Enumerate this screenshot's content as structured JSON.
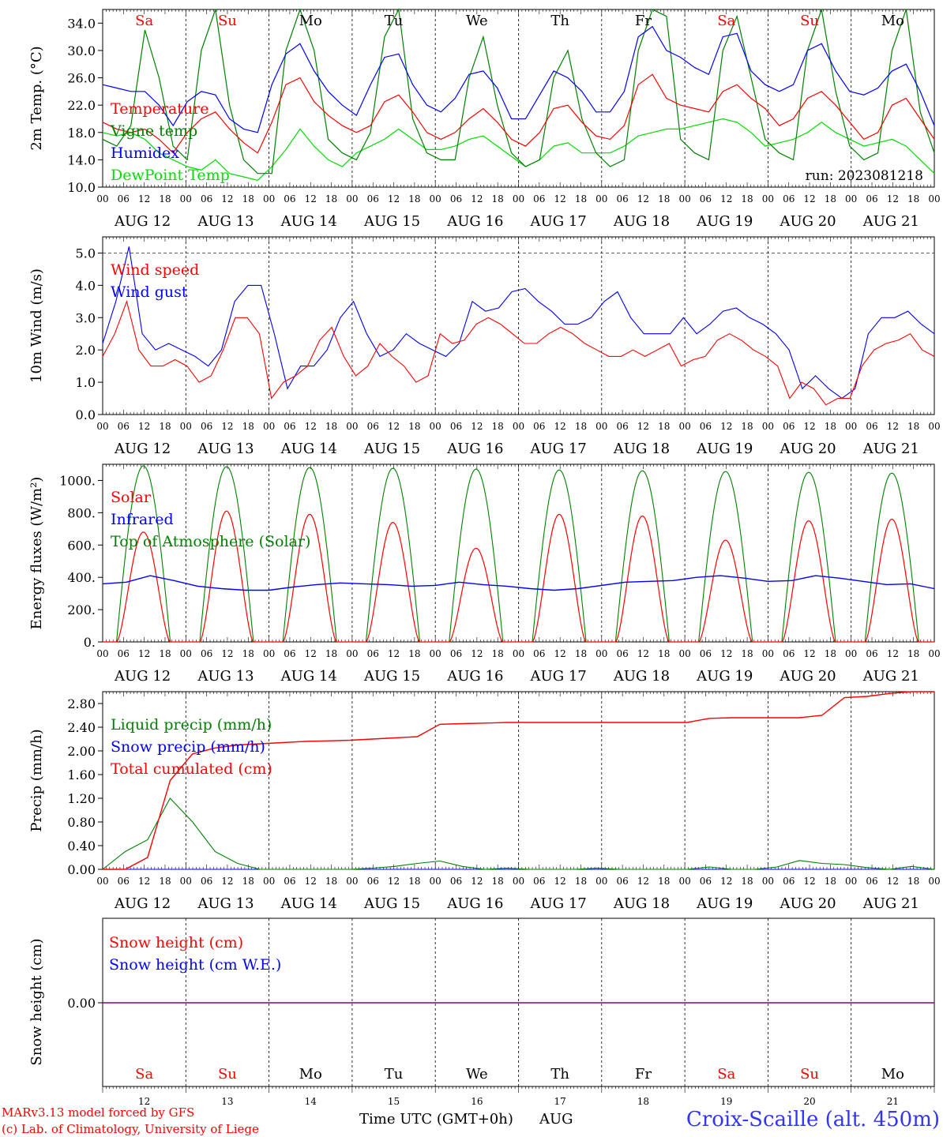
{
  "days": [
    "AUG 12",
    "AUG 13",
    "AUG 14",
    "AUG 15",
    "AUG 16",
    "AUG 17",
    "AUG 18",
    "AUG 19",
    "AUG 20",
    "AUG 21"
  ],
  "weekdays": [
    {
      "label": "Sa",
      "color": "#ff0000"
    },
    {
      "label": "Su",
      "color": "#ff0000"
    },
    {
      "label": "Mo",
      "color": "#000000"
    },
    {
      "label": "Tu",
      "color": "#000000"
    },
    {
      "label": "We",
      "color": "#000000"
    },
    {
      "label": "Th",
      "color": "#000000"
    },
    {
      "label": "Fr",
      "color": "#000000"
    },
    {
      "label": "Sa",
      "color": "#ff0000"
    },
    {
      "label": "Su",
      "color": "#ff0000"
    },
    {
      "label": "Mo",
      "color": "#000000"
    }
  ],
  "hour_ticks": [
    "00",
    "06",
    "12",
    "18"
  ],
  "day_numbers": [
    "12",
    "13",
    "14",
    "15",
    "16",
    "17",
    "18",
    "19",
    "20",
    "21"
  ],
  "colors": {
    "red": "#ff0000",
    "blue": "#0000ff",
    "green": "#008000",
    "lightgreen": "#00dd00",
    "purple": "#800080"
  },
  "footer": {
    "model_line": "MARv3.13 model forced by GFS",
    "credit_line": "(c) Lab. of Climatology, University of Liege",
    "time_label": "Time UTC (GMT+0h)",
    "month_label": "AUG",
    "station": "Croix-Scaille (alt. 450m)"
  },
  "chart_data": [
    {
      "type": "line",
      "ylabel": "2m Temp. (°C)",
      "ylim": [
        10,
        36
      ],
      "yticks": [
        "10.0",
        "14.0",
        "18.0",
        "22.0",
        "26.0",
        "30.0",
        "34.0"
      ],
      "annotation": "run: 2023081218",
      "legend": [
        {
          "name": "Temperature",
          "color": "#ff0000"
        },
        {
          "name": "Vigne temp",
          "color": "#008000"
        },
        {
          "name": "Humidex",
          "color": "#0000ff"
        },
        {
          "name": "DewPoint Temp",
          "color": "#00dd00"
        }
      ],
      "series": [
        {
          "name": "Temperature",
          "color": "#ff0000",
          "values": [
            19.5,
            18.5,
            18,
            18.5,
            17,
            15,
            18,
            20,
            21,
            18.5,
            16.5,
            15,
            19.5,
            25,
            26,
            22.5,
            20.5,
            19,
            18,
            19,
            22.5,
            23.5,
            21,
            18,
            17,
            18,
            20,
            21.5,
            19.5,
            17,
            16,
            18,
            21.5,
            22,
            19.5,
            17.5,
            17,
            19,
            25,
            26.5,
            23,
            22,
            21.5,
            21,
            24,
            25,
            23,
            21.5,
            19,
            20,
            23,
            24,
            22,
            19.5,
            17,
            18,
            22,
            23,
            20,
            17
          ]
        },
        {
          "name": "Vigne temp",
          "color": "#008000",
          "values": [
            17,
            16,
            19,
            33,
            26,
            16,
            14,
            30,
            37,
            22,
            14,
            12,
            12,
            30,
            36,
            30,
            17,
            15,
            14,
            18,
            32,
            36,
            20,
            15,
            14,
            14,
            26,
            32,
            22,
            15,
            13,
            14,
            26,
            30,
            20,
            15,
            13,
            14,
            30,
            37,
            35,
            17,
            15,
            14,
            30,
            35,
            26,
            17,
            15,
            14,
            30,
            36,
            24,
            16,
            14,
            15,
            30,
            36,
            21,
            15
          ]
        },
        {
          "name": "Humidex",
          "color": "#0000ff",
          "values": [
            25,
            24.5,
            24,
            24,
            22,
            19,
            22.5,
            24,
            23.5,
            20,
            18.5,
            18,
            25,
            29.5,
            31,
            27,
            24,
            22,
            20.5,
            25,
            29,
            29.5,
            25,
            22,
            21,
            23,
            26.5,
            27,
            24.5,
            20,
            20,
            23.5,
            27,
            26,
            24,
            21,
            21,
            24,
            32,
            33.5,
            30,
            29,
            27.5,
            26.5,
            32,
            32.5,
            27,
            25,
            24,
            25,
            30,
            31,
            27,
            24,
            23.5,
            24.5,
            27,
            28,
            24,
            19
          ]
        },
        {
          "name": "DewPoint Temp",
          "color": "#00dd00",
          "values": [
            18,
            17.5,
            18,
            17,
            15,
            14,
            13,
            12.5,
            14,
            12,
            11.5,
            11,
            13,
            15.5,
            18.5,
            16,
            14,
            13,
            15,
            16,
            17,
            18.5,
            17,
            15.5,
            15.5,
            16,
            17,
            17.5,
            16,
            14.5,
            13,
            14,
            16,
            16.5,
            15,
            15,
            15,
            16,
            17.5,
            18,
            18.5,
            18.5,
            19,
            19.5,
            20,
            19.5,
            18,
            16,
            16.5,
            17,
            18,
            19.5,
            18,
            17,
            16,
            16.5,
            17,
            16,
            14,
            12
          ]
        }
      ]
    },
    {
      "type": "line",
      "ylabel": "10m Wind (m/s)",
      "ylim": [
        0,
        5.5
      ],
      "yticks": [
        "0.0",
        "1.0",
        "2.0",
        "3.0",
        "4.0",
        "5.0"
      ],
      "legend": [
        {
          "name": "Wind speed",
          "color": "#ff0000"
        },
        {
          "name": "Wind gust",
          "color": "#0000ff"
        }
      ],
      "series": [
        {
          "name": "Wind speed",
          "color": "#ff0000",
          "values": [
            1.8,
            2.5,
            3.5,
            2,
            1.5,
            1.5,
            1.7,
            1.5,
            1,
            1.2,
            2,
            3,
            3,
            2.5,
            0.5,
            1,
            1.2,
            1.5,
            2.3,
            2.7,
            1.8,
            1.2,
            1.5,
            2.2,
            1.8,
            1.5,
            1,
            1.2,
            2.5,
            2.2,
            2.3,
            2.8,
            3,
            2.8,
            2.5,
            2.2,
            2.2,
            2.5,
            2.7,
            2.5,
            2.2,
            2,
            1.8,
            1.8,
            2,
            1.8,
            2,
            2.2,
            1.5,
            1.7,
            1.8,
            2.3,
            2.5,
            2.3,
            2,
            1.8,
            1.5,
            0.5,
            1,
            0.8,
            0.3,
            0.5,
            0.5,
            1.5,
            2,
            2.2,
            2.3,
            2.5,
            2,
            1.8
          ]
        },
        {
          "name": "Wind gust",
          "color": "#0000ff",
          "values": [
            2.2,
            3.5,
            5.2,
            2.5,
            2,
            2.2,
            2,
            1.8,
            1.5,
            2,
            3.5,
            4,
            4,
            2.5,
            0.8,
            1.5,
            1.5,
            2,
            3,
            3.5,
            2.5,
            1.8,
            2,
            2.5,
            2.2,
            2,
            1.8,
            2.2,
            3.5,
            3.2,
            3.3,
            3.8,
            3.9,
            3.5,
            3.2,
            2.8,
            2.8,
            3,
            3.5,
            3.8,
            3,
            2.5,
            2.5,
            2.5,
            3,
            2.5,
            2.8,
            3.2,
            3.3,
            3,
            2.8,
            2.5,
            2,
            0.8,
            1.2,
            0.8,
            0.5,
            0.8,
            2.5,
            3,
            3,
            3.2,
            2.8,
            2.5
          ]
        }
      ]
    },
    {
      "type": "line",
      "ylabel": "Energy fluxes (W/m²)",
      "ylim": [
        0,
        1100
      ],
      "yticks": [
        "0.",
        "200.",
        "400.",
        "600.",
        "800.",
        "1000."
      ],
      "legend": [
        {
          "name": "Solar",
          "color": "#ff0000"
        },
        {
          "name": "Infrared",
          "color": "#0000ff"
        },
        {
          "name": "Top of Atmosphere (Solar)",
          "color": "#008000"
        }
      ],
      "toa_daily_peak": [
        1090,
        1085,
        1080,
        1075,
        1070,
        1065,
        1060,
        1055,
        1050,
        1045
      ],
      "solar_daily_peak": [
        680,
        810,
        790,
        740,
        580,
        790,
        780,
        630,
        750,
        760
      ],
      "infrared_values": [
        360,
        370,
        410,
        380,
        345,
        330,
        320,
        320,
        340,
        355,
        365,
        360,
        355,
        345,
        350,
        370,
        355,
        345,
        330,
        320,
        330,
        350,
        370,
        375,
        380,
        400,
        410,
        395,
        375,
        380,
        410,
        395,
        375,
        355,
        360,
        330
      ]
    },
    {
      "type": "line",
      "ylabel": "Precip (mm/h)",
      "ylim": [
        0,
        3
      ],
      "yticks": [
        "0.00",
        "0.40",
        "0.80",
        "1.20",
        "1.60",
        "2.00",
        "2.40",
        "2.80"
      ],
      "legend": [
        {
          "name": "Liquid precip (mm/h)",
          "color": "#008000"
        },
        {
          "name": "Snow precip (mm/h)",
          "color": "#0000ff"
        },
        {
          "name": "Total cumulated (cm)",
          "color": "#ff0000"
        }
      ],
      "series": [
        {
          "name": "Total cumulated (cm)",
          "color": "#ff0000",
          "values": [
            0,
            0,
            0.2,
            1.5,
            1.95,
            2.05,
            2.1,
            2.12,
            2.14,
            2.16,
            2.17,
            2.18,
            2.2,
            2.22,
            2.24,
            2.45,
            2.46,
            2.47,
            2.48,
            2.48,
            2.48,
            2.48,
            2.48,
            2.48,
            2.48,
            2.48,
            2.48,
            2.55,
            2.56,
            2.56,
            2.56,
            2.56,
            2.6,
            2.9,
            2.92,
            2.97,
            3.0,
            3.0
          ]
        },
        {
          "name": "Liquid precip (mm/h)",
          "color": "#008000",
          "values": [
            0,
            0.3,
            0.5,
            1.2,
            0.8,
            0.3,
            0.1,
            0,
            0,
            0,
            0,
            0,
            0.02,
            0.05,
            0.1,
            0.14,
            0.05,
            0,
            0.02,
            0,
            0,
            0,
            0.02,
            0,
            0,
            0,
            0,
            0.04,
            0,
            0,
            0.04,
            0.15,
            0.1,
            0.08,
            0.03,
            0,
            0.05,
            0
          ]
        },
        {
          "name": "Snow precip (mm/h)",
          "color": "#0000ff",
          "values": [
            0,
            0,
            0,
            0,
            0,
            0,
            0,
            0,
            0,
            0
          ]
        }
      ]
    },
    {
      "type": "line",
      "ylabel": "Snow height (cm)",
      "yticks": [
        "0.00"
      ],
      "legend": [
        {
          "name": "Snow height (cm)",
          "color": "#ff0000"
        },
        {
          "name": "Snow height (cm W.E.)",
          "color": "#0000ff"
        }
      ],
      "series": [
        {
          "name": "Snow height (cm)",
          "color": "#ff0000",
          "values": [
            0,
            0,
            0,
            0,
            0,
            0,
            0,
            0,
            0,
            0
          ]
        },
        {
          "name": "Snow height (cm W.E.)",
          "color": "#0000ff",
          "values": [
            0,
            0,
            0,
            0,
            0,
            0,
            0,
            0,
            0,
            0
          ]
        }
      ]
    }
  ]
}
